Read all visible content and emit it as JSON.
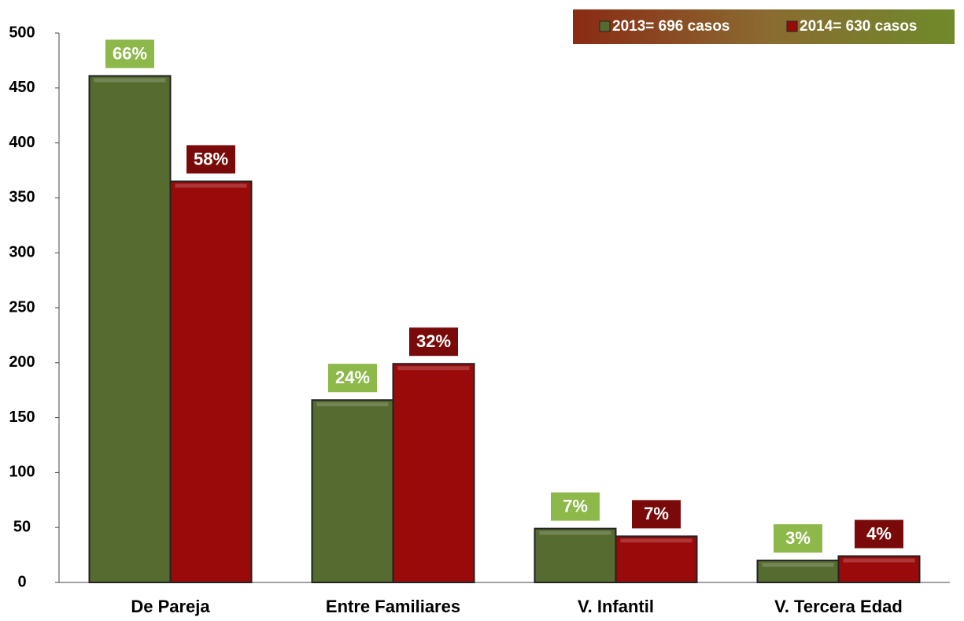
{
  "chart_data": {
    "type": "bar",
    "categories": [
      "De Pareja",
      "Entre Familiares",
      "V. Infantil",
      "V. Tercera Edad"
    ],
    "series": [
      {
        "name": "2013= 696 casos",
        "color": "#556b2f",
        "values": [
          461,
          166,
          49,
          20
        ],
        "labels": [
          "66%",
          "24%",
          "7%",
          "3%"
        ],
        "label_color": "#8db84a"
      },
      {
        "name": "2014= 630 casos",
        "color": "#9b0a0a",
        "values": [
          365,
          199,
          42,
          24
        ],
        "labels": [
          "58%",
          "32%",
          "7%",
          "4%"
        ],
        "label_color": "#7a0a0a"
      }
    ],
    "ylim": [
      0,
      500
    ],
    "yticks": [
      0,
      50,
      100,
      150,
      200,
      250,
      300,
      350,
      400,
      450,
      500
    ],
    "grid": false,
    "legend": "top-right"
  }
}
